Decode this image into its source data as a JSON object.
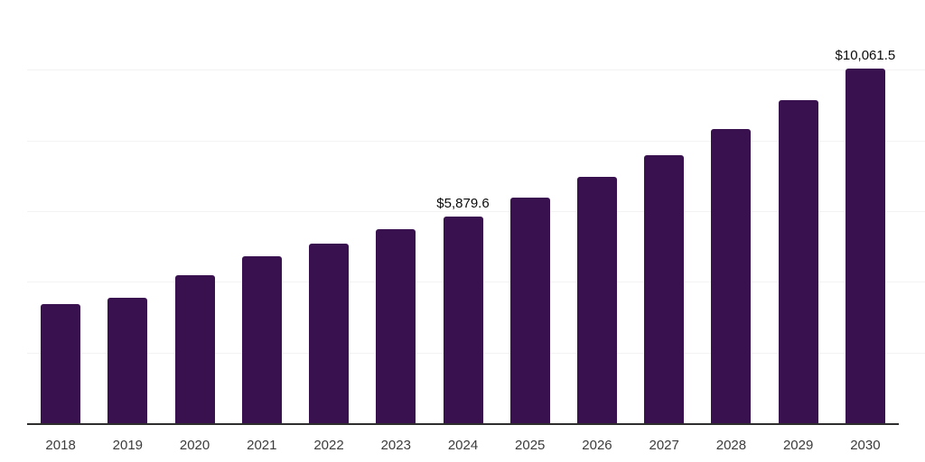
{
  "chart_data": {
    "type": "bar",
    "title": "",
    "xlabel": "",
    "ylabel": "",
    "categories": [
      "2018",
      "2019",
      "2020",
      "2021",
      "2022",
      "2023",
      "2024",
      "2025",
      "2026",
      "2027",
      "2028",
      "2029",
      "2030"
    ],
    "values": [
      3384,
      3562,
      4223,
      4757,
      5096,
      5508,
      5879.6,
      6411,
      6996,
      7607,
      8344,
      9158,
      10061.5
    ],
    "data_labels": {
      "2024": "$5,879.6",
      "2030": "$10,061.5"
    },
    "ylim": [
      0,
      12000
    ],
    "gridline_step": 2000,
    "grid": true,
    "legend": false,
    "y_axis_labels_visible": false,
    "colors": {
      "bar": "#38114E",
      "grid": "#F3F3F3",
      "axis": "#2E2E2E",
      "tick_text": "#3C3C3C",
      "value_label_text": "#0B0B0B",
      "background": "#FFFFFF"
    }
  }
}
